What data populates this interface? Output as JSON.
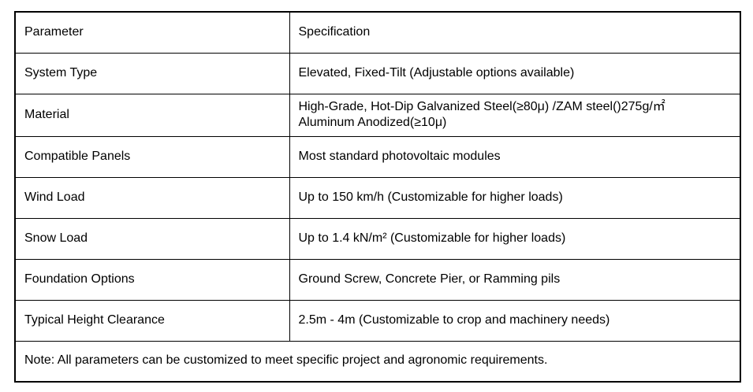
{
  "table": {
    "header": {
      "parameter": "Parameter",
      "specification": "Specification"
    },
    "rows": [
      {
        "parameter": "System Type",
        "specification": "Elevated, Fixed-Tilt (Adjustable options available)"
      },
      {
        "parameter": "Material",
        "specification": "High-Grade, Hot-Dip Galvanized Steel(≥80μ) /ZAM steel()275g/㎡\nAluminum Anodized(≥10μ)"
      },
      {
        "parameter": "Compatible Panels",
        "specification": "Most standard photovoltaic modules"
      },
      {
        "parameter": "Wind Load",
        "specification": "Up to 150 km/h (Customizable for higher loads)"
      },
      {
        "parameter": "Snow Load",
        "specification": "Up to 1.4 kN/m² (Customizable for higher loads)"
      },
      {
        "parameter": "Foundation Options",
        "specification": "Ground Screw, Concrete Pier, or Ramming pils"
      },
      {
        "parameter": "Typical Height Clearance",
        "specification": "2.5m - 4m (Customizable to crop and machinery needs)"
      }
    ],
    "note": "Note: All parameters can be customized to meet specific project and agronomic requirements.",
    "colors": {
      "border": "#000000",
      "text": "#000000",
      "background": "#ffffff"
    }
  }
}
